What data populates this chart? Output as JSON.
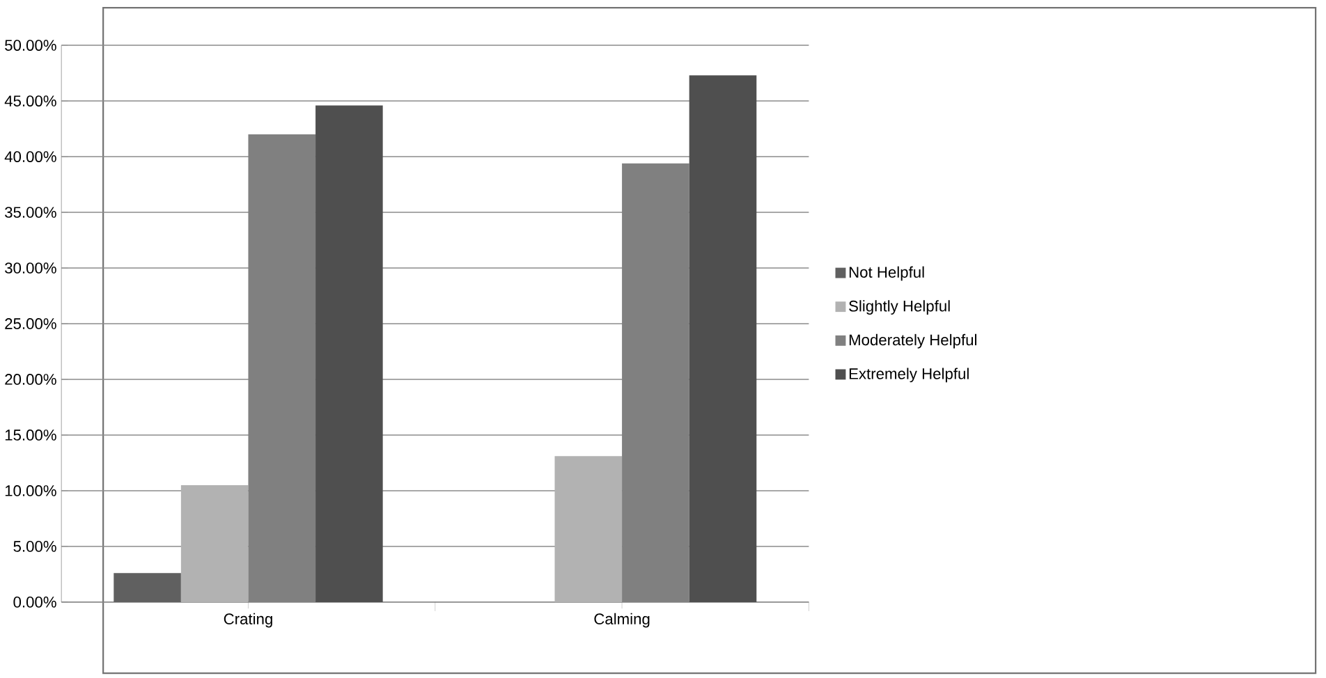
{
  "chart_data": {
    "type": "bar",
    "categories": [
      "Crating",
      "Calming"
    ],
    "series": [
      {
        "name": "Not Helpful",
        "color": "#606060",
        "values": [
          2.6,
          0
        ]
      },
      {
        "name": "Slightly Helpful",
        "color": "#b2b2b2",
        "values": [
          10.5,
          13.1
        ]
      },
      {
        "name": "Moderately Helpful",
        "color": "#808080",
        "values": [
          42.0,
          39.4
        ]
      },
      {
        "name": "Extremely Helpful",
        "color": "#4f4f4f",
        "values": [
          44.6,
          47.3
        ]
      }
    ],
    "ylim": [
      0,
      50
    ],
    "yticks": [
      {
        "value": 0,
        "label": "0.00%"
      },
      {
        "value": 5,
        "label": "5.00%"
      },
      {
        "value": 10,
        "label": "10.00%"
      },
      {
        "value": 15,
        "label": "15.00%"
      },
      {
        "value": 20,
        "label": "20.00%"
      },
      {
        "value": 25,
        "label": "25.00%"
      },
      {
        "value": 30,
        "label": "30.00%"
      },
      {
        "value": 35,
        "label": "35.00%"
      },
      {
        "value": 40,
        "label": "40.00%"
      },
      {
        "value": 45,
        "label": "45.00%"
      },
      {
        "value": 50,
        "label": "50.00%"
      }
    ],
    "grid": "y",
    "legend": "right"
  }
}
